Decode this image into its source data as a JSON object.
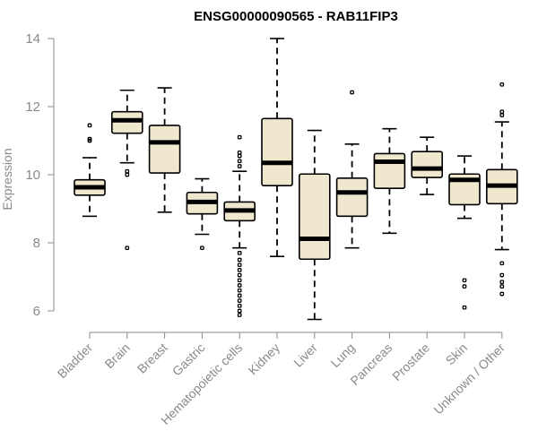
{
  "chart_data": {
    "type": "boxplot",
    "title": "ENSG00000090565 - RAB11FIP3",
    "xlabel": "",
    "ylabel": "Expression",
    "ylim": [
      5.6,
      14.2
    ],
    "yticks": [
      6,
      8,
      10,
      12,
      14
    ],
    "colors": {
      "box_fill": "#efe8cf",
      "stroke": "#000000",
      "axis": "#8a8a8a"
    },
    "categories": [
      "Bladder",
      "Brain",
      "Breast",
      "Gastric",
      "Hematopoietic cells",
      "Kidney",
      "Liver",
      "Lung",
      "Pancreas",
      "Prostate",
      "Skin",
      "Unknown / Other"
    ],
    "boxes": [
      {
        "name": "Bladder",
        "whisker_low": 8.78,
        "q1": 9.4,
        "median": 9.63,
        "q3": 9.85,
        "whisker_high": 10.5,
        "outliers": [
          11.0,
          11.05,
          11.45
        ]
      },
      {
        "name": "Brain",
        "whisker_low": 10.35,
        "q1": 11.22,
        "median": 11.6,
        "q3": 11.85,
        "whisker_high": 12.48,
        "outliers": [
          10.1,
          10.0,
          7.85
        ]
      },
      {
        "name": "Breast",
        "whisker_low": 8.9,
        "q1": 10.05,
        "median": 10.95,
        "q3": 11.45,
        "whisker_high": 12.55,
        "outliers": []
      },
      {
        "name": "Gastric",
        "whisker_low": 8.25,
        "q1": 8.85,
        "median": 9.2,
        "q3": 9.48,
        "whisker_high": 9.88,
        "outliers": [
          7.85
        ]
      },
      {
        "name": "Hematopoietic cells",
        "whisker_low": 7.85,
        "q1": 8.65,
        "median": 8.95,
        "q3": 9.2,
        "whisker_high": 10.1,
        "outliers": [
          10.25,
          10.4,
          10.55,
          10.65,
          11.1,
          7.7,
          7.5,
          7.35,
          7.2,
          7.05,
          6.9,
          6.75,
          6.6,
          6.45,
          6.3,
          6.15,
          6.0,
          5.88
        ]
      },
      {
        "name": "Kidney",
        "whisker_low": 7.6,
        "q1": 9.68,
        "median": 10.35,
        "q3": 11.65,
        "whisker_high": 14.0,
        "outliers": []
      },
      {
        "name": "Liver",
        "whisker_low": 5.75,
        "q1": 7.52,
        "median": 8.12,
        "q3": 10.02,
        "whisker_high": 11.3,
        "outliers": []
      },
      {
        "name": "Lung",
        "whisker_low": 7.85,
        "q1": 8.78,
        "median": 9.48,
        "q3": 9.9,
        "whisker_high": 10.9,
        "outliers": [
          12.42
        ]
      },
      {
        "name": "Pancreas",
        "whisker_low": 8.28,
        "q1": 9.6,
        "median": 10.38,
        "q3": 10.62,
        "whisker_high": 11.35,
        "outliers": []
      },
      {
        "name": "Prostate",
        "whisker_low": 9.42,
        "q1": 9.92,
        "median": 10.18,
        "q3": 10.68,
        "whisker_high": 11.1,
        "outliers": []
      },
      {
        "name": "Skin",
        "whisker_low": 8.72,
        "q1": 9.12,
        "median": 9.85,
        "q3": 10.02,
        "whisker_high": 10.55,
        "outliers": [
          6.9,
          6.72,
          6.1
        ]
      },
      {
        "name": "Unknown / Other",
        "whisker_low": 7.8,
        "q1": 9.15,
        "median": 9.68,
        "q3": 10.15,
        "whisker_high": 11.55,
        "outliers": [
          11.75,
          11.85,
          12.65,
          7.4,
          7.05,
          6.85,
          6.72,
          6.5
        ]
      }
    ]
  }
}
